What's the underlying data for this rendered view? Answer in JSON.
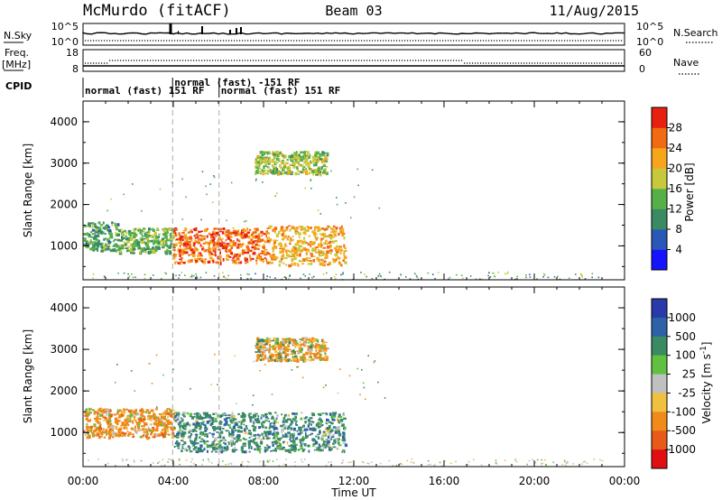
{
  "header": {
    "title": "McMurdo (fitACF)",
    "beam": "Beam 03",
    "date": "11/Aug/2015"
  },
  "top_panels": {
    "nsky_label": "N.Sky",
    "nsky_ticks": [
      "10^5",
      "10^0"
    ],
    "nsearch_label": "N.Search",
    "nsearch_ticks": [
      "10^5",
      "10^0"
    ],
    "freq_label_1": "Freq.",
    "freq_label_2": "[MHz]",
    "freq_ticks": [
      "18",
      "8"
    ],
    "nave_label": "Nave",
    "nave_ticks": [
      "60",
      "0"
    ],
    "cpid_label": "CPID"
  },
  "cpid_segments": [
    {
      "start_h": 0.0,
      "end_h": 3.97,
      "label": "normal (fast) 151 RF",
      "row": 2
    },
    {
      "start_h": 3.97,
      "end_h": 6.03,
      "label": "normal (fast) -151 RF",
      "row": 1
    },
    {
      "start_h": 6.03,
      "end_h": 24.0,
      "label": "normal (fast) 151 RF",
      "row": 2
    }
  ],
  "axes": {
    "ylabel": "Slant Range [km]",
    "yticks": [
      "1000",
      "2000",
      "3000",
      "4000"
    ],
    "xticks": [
      "00:00",
      "04:00",
      "08:00",
      "12:00",
      "16:00",
      "20:00",
      "00:00"
    ],
    "xlabel": "Time UT"
  },
  "power_colorbar": {
    "label": "Power [dB]",
    "ticks": [
      "4",
      "8",
      "12",
      "16",
      "20",
      "24",
      "28"
    ],
    "colors": [
      "#1414ff",
      "#2a58b8",
      "#3a8a62",
      "#56b04a",
      "#c8c83c",
      "#f7a61c",
      "#f26a12",
      "#e82010"
    ]
  },
  "velocity_colorbar": {
    "label": "Velocity [m s^-1]",
    "ticks": [
      "1000",
      "500",
      "100",
      "25",
      "-25",
      "-100",
      "-500",
      "-1000"
    ],
    "colors": [
      "#2a3aa8",
      "#2e62a8",
      "#3a8a62",
      "#60c040",
      "#c0c0c0",
      "#f0c040",
      "#f08a18",
      "#e85a18",
      "#e01010"
    ]
  },
  "chart_data": {
    "type": "heatmap",
    "x_unit": "hours UT",
    "xlim": [
      0,
      24
    ],
    "ylim": [
      180,
      4500
    ],
    "power_panel": {
      "features": [
        {
          "x": [
            0.0,
            1.5
          ],
          "y": [
            900,
            1600
          ],
          "power_db": 12
        },
        {
          "x": [
            1.5,
            4.0
          ],
          "y": [
            850,
            1450
          ],
          "power_db": 14
        },
        {
          "x": [
            4.0,
            8.2
          ],
          "y": [
            600,
            1450
          ],
          "power_db": 26
        },
        {
          "x": [
            8.2,
            11.6
          ],
          "y": [
            550,
            1500
          ],
          "power_db": 22
        },
        {
          "x": [
            7.6,
            10.8
          ],
          "y": [
            2750,
            3300
          ],
          "power_db": 16
        }
      ],
      "grid_lines_h": [
        3.97,
        6.03
      ]
    },
    "velocity_panel": {
      "features": [
        {
          "x": [
            0.0,
            4.0
          ],
          "y": [
            900,
            1600
          ],
          "velocity": -250
        },
        {
          "x": [
            4.0,
            11.6
          ],
          "y": [
            550,
            1500
          ],
          "velocity": 300
        },
        {
          "x": [
            7.6,
            10.8
          ],
          "y": [
            2750,
            3300
          ],
          "velocity": -150
        }
      ],
      "grid_lines_h": [
        3.97,
        6.03
      ]
    }
  }
}
